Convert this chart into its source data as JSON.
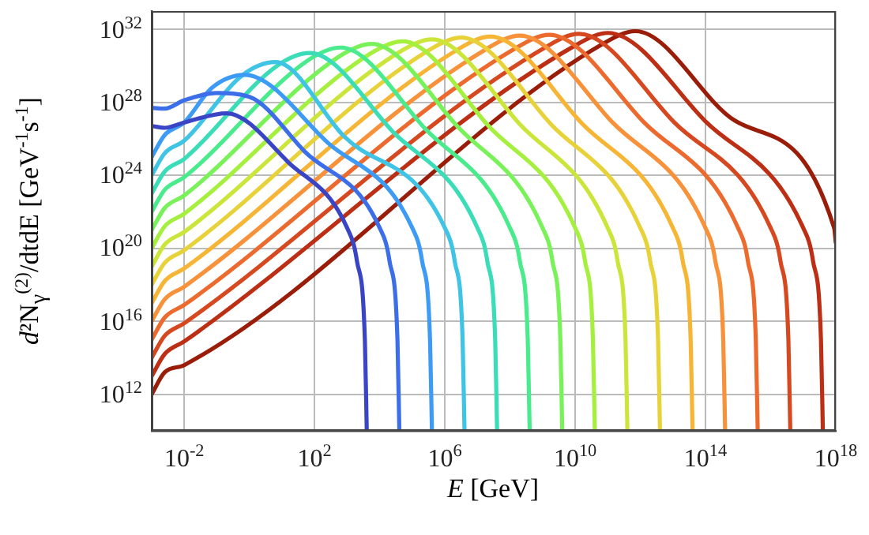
{
  "chart_data": {
    "type": "line",
    "xlabel": "E [GeV]",
    "ylabel": "d²N$_{γ}$$^{(2)}$/dtdE [GeV$^{-1}$s$^{-1}$]",
    "log": "xy",
    "grid": true,
    "legend": false,
    "marker": "none",
    "line_style": "solid",
    "xlim": [
      0.001,
      1e+18
    ],
    "ylim": [
      10000000000.0,
      1e+33
    ],
    "xticks": [
      {
        "value": 0.01,
        "label": "10$^{-2}$"
      },
      {
        "value": 100,
        "label": "10$^{2}$"
      },
      {
        "value": 1000000.0,
        "label": "10$^{6}$"
      },
      {
        "value": 10000000000.0,
        "label": "10$^{10}$"
      },
      {
        "value": 100000000000000.0,
        "label": "10$^{14}$"
      },
      {
        "value": 1e+18,
        "label": "10$^{18}$"
      }
    ],
    "yticks": [
      {
        "value": 1000000000000.0,
        "label": "10$^{12}$"
      },
      {
        "value": 1e+16,
        "label": "10$^{16}$"
      },
      {
        "value": 1e+20,
        "label": "10$^{20}$"
      },
      {
        "value": 1e+24,
        "label": "10$^{24}$"
      },
      {
        "value": 1e+28,
        "label": "10$^{28}$"
      },
      {
        "value": 1e+32,
        "label": "10$^{32}$"
      }
    ],
    "series": [
      {
        "color": "#3a45c6",
        "x": [
          0.001,
          0.0025,
          0.01,
          0.2,
          16,
          1000,
          2000,
          3500,
          4000
        ],
        "values": [
          5e+26,
          4e+26,
          7.9e+26,
          2.5e+27,
          5e+24,
          1.3e+21,
          2e+19,
          1000000000000000.0,
          10000000000.0
        ]
      },
      {
        "color": "#3b6ee8",
        "x": [
          0.001,
          0.0025,
          0.01,
          0.1,
          1,
          50,
          10000.0,
          20000.0,
          35000.0,
          40000.0
        ],
        "values": [
          5e+27,
          4.5e+27,
          1.3e+28,
          3.2e+28,
          2e+28,
          2e+25,
          1.3e+21,
          2e+19,
          1000000000000000.0,
          10000000000.0
        ]
      },
      {
        "color": "#3e9bf5",
        "x": [
          0.001,
          0.0025,
          0.01,
          0.071,
          0.71,
          250,
          100000.0,
          200000.0,
          350000.0,
          400000.0
        ],
        "values": [
          1e+25,
          1.6e+26,
          7.9e+26,
          6.3e+28,
          3.2e+29,
          6.3e+25,
          1.3e+21,
          2e+19,
          1000000000000000.0,
          10000000000.0
        ]
      },
      {
        "color": "#40c4e5",
        "x": [
          0.001,
          0.0025,
          0.01,
          0.63,
          6.3,
          790,
          1000000.0,
          2000000.0,
          3500000.0,
          4000000.0
        ],
        "values": [
          1e+24,
          1.6e+25,
          7.9e+25,
          3.2e+29,
          1.6e+30,
          1.4e+26,
          1.3e+21,
          2e+19,
          1000000000000000.0,
          10000000000.0
        ]
      },
      {
        "color": "#3bdcb8",
        "x": [
          0.001,
          0.0025,
          0.01,
          7.1,
          71,
          25000.0,
          10000000.0,
          20000000.0,
          35000000.0,
          40000000.0
        ],
        "values": [
          1e+23,
          1.6e+24,
          7.9e+24,
          1e+30,
          5e+30,
          2.5e+26,
          1.3e+21,
          2e+19,
          1000000000000000.0,
          10000000000.0
        ]
      },
      {
        "color": "#4aeb8c",
        "x": [
          0.001,
          0.0025,
          0.01,
          63,
          630,
          250000.0,
          100000000.0,
          200000000.0,
          350000000.0,
          400000000.0
        ],
        "values": [
          1e+22,
          1.6e+23,
          7.9e+23,
          2e+30,
          1e+31,
          3.5e+26,
          1.3e+21,
          2e+19,
          1000000000000000.0,
          10000000000.0
        ]
      },
      {
        "color": "#79f25a",
        "x": [
          0.001,
          0.0025,
          0.01,
          560,
          5600,
          2500000.0,
          1000000000.0,
          2000000000.0,
          3500000000.0,
          4000000000.0
        ],
        "values": [
          1e+21,
          1.6e+22,
          7.9e+22,
          3.2e+30,
          1.6e+31,
          4.5e+26,
          1.3e+21,
          2e+19,
          1000000000000000.0,
          10000000000.0
        ]
      },
      {
        "color": "#a5f03e",
        "x": [
          0.001,
          0.0025,
          0.01,
          5000,
          50000.0,
          22000000.0,
          10000000000.0,
          20000000000.0,
          35000000000.0,
          40000000000.0
        ],
        "values": [
          1e+20,
          1.6e+21,
          7.9e+21,
          4.5e+30,
          2.2e+31,
          5e+26,
          1.3e+21,
          2e+19,
          1000000000000000.0,
          10000000000.0
        ]
      },
      {
        "color": "#cce53a",
        "x": [
          0.001,
          0.0025,
          0.01,
          40000.0,
          400000.0,
          200000000.0,
          100000000000.0,
          200000000000.0,
          350000000000.0,
          400000000000.0
        ],
        "values": [
          1e+19,
          1.6e+20,
          7.9e+20,
          5.6e+30,
          2.8e+31,
          6.3e+26,
          1.3e+21,
          2e+19,
          1000000000000000.0,
          10000000000.0
        ]
      },
      {
        "color": "#e8d23a",
        "x": [
          0.001,
          0.0025,
          0.01,
          320000.0,
          3200000.0,
          1800000000.0,
          1000000000000.0,
          2000000000000.0,
          3500000000000.0,
          4000000000000.0
        ],
        "values": [
          1e+18,
          1.6e+19,
          7.9e+19,
          7.1e+30,
          3.5e+31,
          6.3e+26,
          1.3e+21,
          2e+19,
          1000000000000000.0,
          10000000000.0
        ]
      },
      {
        "color": "#f6b535",
        "x": [
          0.001,
          0.0025,
          0.01,
          2500000.0,
          25000000.0,
          16000000000.0,
          10000000000000.0,
          20000000000000.0,
          35000000000000.0,
          40000000000000.0
        ],
        "values": [
          1e+17,
          1.6e+18,
          7.9e+18,
          7.9e+30,
          4e+31,
          7.1e+26,
          1.3e+21,
          2e+19,
          1000000000000000.0,
          10000000000.0
        ]
      },
      {
        "color": "#f7913a",
        "x": [
          0.001,
          0.0025,
          0.01,
          20000000.0,
          200000000.0,
          140000000000.0,
          100000000000000.0,
          200000000000000.0,
          350000000000000.0,
          400000000000000.0
        ],
        "values": [
          1e+16,
          1.6e+17,
          7.9e+17,
          8.9e+30,
          4.5e+31,
          7.9e+26,
          1.3e+21,
          2e+19,
          1000000000000000.0,
          10000000000.0
        ]
      },
      {
        "color": "#ec6a2e",
        "x": [
          0.001,
          0.0025,
          0.01,
          160000000.0,
          1600000000.0,
          1300000000000.0,
          1000000000000000.0,
          2000000000000000.0,
          3500000000000000.0,
          4000000000000000.0
        ],
        "values": [
          1000000000000000.0,
          1.6e+16,
          7.9e+16,
          1e+31,
          5e+31,
          7.9e+26,
          1.3e+21,
          2e+19,
          1000000000000000.0,
          10000000000.0
        ]
      },
      {
        "color": "#d6481f",
        "x": [
          0.001,
          0.0025,
          0.01,
          1300000000.0,
          13000000000.0,
          11000000000000.0,
          1e+16,
          2e+16,
          3.5e+16,
          4e+16
        ],
        "values": [
          100000000000000.0,
          1600000000000000.0,
          7900000000000000.0,
          1.1e+31,
          5.6e+31,
          7.9e+26,
          1.3e+21,
          2e+19,
          1000000000000000.0,
          10000000000.0
        ]
      },
      {
        "color": "#bc2f15",
        "x": [
          0.001,
          0.0025,
          0.01,
          10000000000.0,
          100000000000.0,
          100000000000000.0,
          1e+17,
          2e+17,
          3.5e+17,
          4e+17
        ],
        "values": [
          10000000000000.0,
          160000000000000.0,
          790000000000000.0,
          1.3e+31,
          6.3e+31,
          8.9e+26,
          1.3e+21,
          2e+19,
          1000000000000000.0,
          10000000000.0
        ]
      },
      {
        "color": "#9a1d0a",
        "x": [
          0.001,
          0.0025,
          0.01,
          71000000000.0,
          710000000000.0,
          790000000000000.0,
          8.9e+17,
          1e+18
        ],
        "values": [
          1000000000000.0,
          16000000000000.0,
          40000000000000.0,
          1.6e+31,
          7.9e+31,
          1e+27,
          1.3e+21,
          2e+20
        ]
      }
    ]
  }
}
